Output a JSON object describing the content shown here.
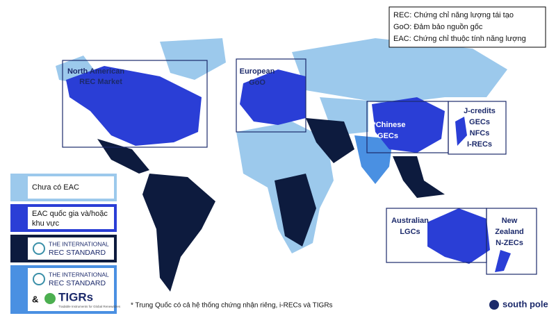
{
  "abbreviations": [
    "REC: Chứng chỉ năng lượng tái tạo",
    "GoO: Đảm bảo nguồn gốc",
    "EAC: Chứng chỉ thuộc tính năng lượng"
  ],
  "regions": {
    "north_america": [
      "North American",
      "REC Market"
    ],
    "europe": [
      "European",
      "GoO"
    ],
    "china": [
      "*Chinese",
      "GECs"
    ],
    "japan": [
      "J-credits",
      "GECs",
      "NFCs",
      "I-RECs"
    ],
    "australia": [
      "Australian",
      "LGCs"
    ],
    "new_zealand": [
      "New",
      "Zealand",
      "N-ZECs"
    ]
  },
  "legend": {
    "no_eac": "Chưa có EAC",
    "national": [
      "EAC quốc gia và/hoặc",
      "khu vực"
    ],
    "irec": [
      "THE INTERNATIONAL",
      "REC STANDARD"
    ],
    "irec_tigrs": [
      "THE INTERNATIONAL",
      "REC STANDARD"
    ],
    "ampersand": "&",
    "tigrs": "TIGRs",
    "tigrs_sub": "Tradable Instruments for Global Renewables"
  },
  "footnote": "* Trung Quốc có cả hệ thống chứng nhận riêng, i-RECs và TIGRs",
  "brand": "south pole"
}
